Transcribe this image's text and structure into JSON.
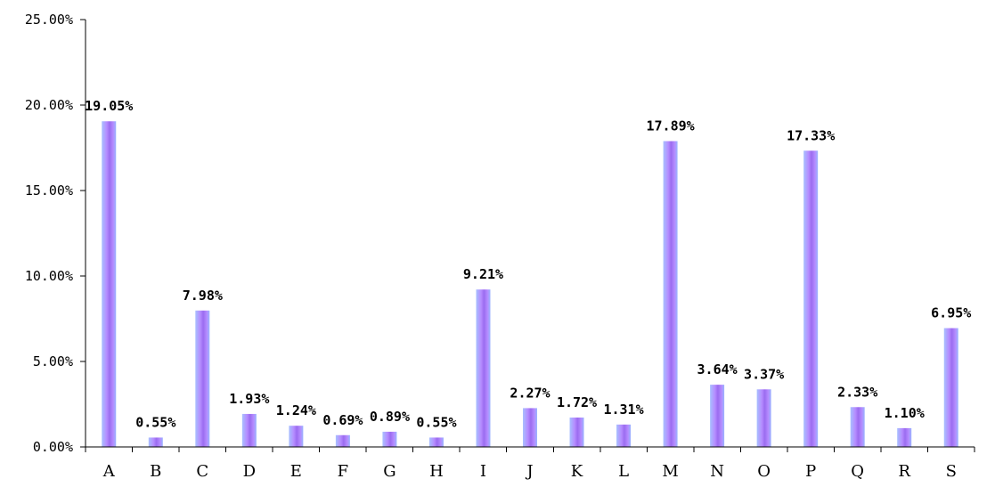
{
  "chart_data": {
    "type": "bar",
    "categories": [
      "A",
      "B",
      "C",
      "D",
      "E",
      "F",
      "G",
      "H",
      "I",
      "J",
      "K",
      "L",
      "M",
      "N",
      "O",
      "P",
      "Q",
      "R",
      "S"
    ],
    "values": [
      19.05,
      0.55,
      7.98,
      1.93,
      1.24,
      0.69,
      0.89,
      0.55,
      9.21,
      2.27,
      1.72,
      1.31,
      17.89,
      3.64,
      3.37,
      17.33,
      2.33,
      1.1,
      6.95
    ],
    "data_labels": [
      "19.05%",
      "0.55%",
      "7.98%",
      "1.93%",
      "1.24%",
      "0.69%",
      "0.89%",
      "0.55%",
      "9.21%",
      "2.27%",
      "1.72%",
      "1.31%",
      "17.89%",
      "3.64%",
      "3.37%",
      "17.33%",
      "2.33%",
      "1.10%",
      "6.95%"
    ],
    "ylim": [
      0,
      25
    ],
    "yticks": [
      0,
      5,
      10,
      15,
      20,
      25
    ],
    "ytick_labels": [
      "0.00%",
      "5.00%",
      "10.00%",
      "15.00%",
      "20.00%",
      "25.00%"
    ],
    "title": "",
    "xlabel": "",
    "ylabel": "",
    "grid": false,
    "legend": "none",
    "bar_colors": {
      "edge": "#9ab4ff",
      "mid": "#b080ff",
      "center": "#9b6cf0"
    },
    "axis_color": "#000000"
  }
}
